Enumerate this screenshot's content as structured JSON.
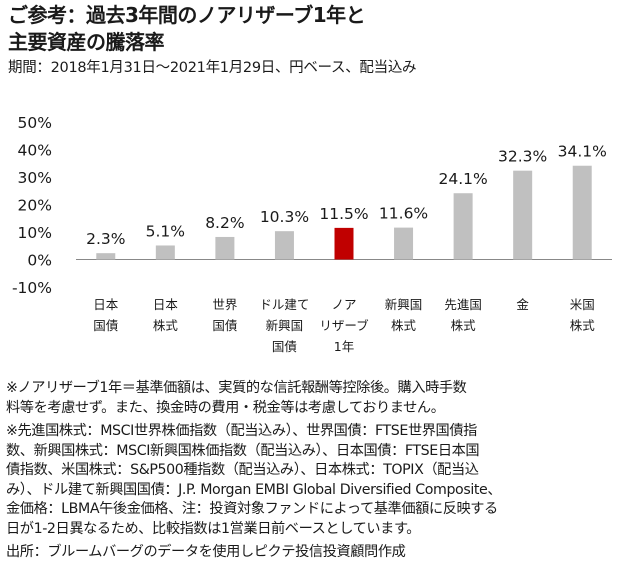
{
  "title_lines": [
    "ご参考：過去3年間のノアリザーブ1年と",
    "主要資産の騰落率"
  ],
  "subtitle": "期間：2018年1月31日～2021年1月29日、円ベース、配当込み",
  "colors": {
    "bar": "#c0c0c0",
    "highlight": "#c00000",
    "text": "#1a1a1a",
    "axis": "#888888"
  },
  "chart_data": {
    "type": "bar",
    "categories": [
      [
        "日本",
        "国債"
      ],
      [
        "日本",
        "株式"
      ],
      [
        "世界",
        "国債"
      ],
      [
        "ドル建て",
        "新興国",
        "国債"
      ],
      [
        "ノア",
        "リザーブ",
        "1年"
      ],
      [
        "新興国",
        "株式"
      ],
      [
        "先進国",
        "株式"
      ],
      [
        "金"
      ],
      [
        "米国",
        "株式"
      ]
    ],
    "values": [
      2.3,
      5.1,
      8.2,
      10.3,
      11.5,
      11.6,
      24.1,
      32.3,
      34.1
    ],
    "data_labels": [
      "2.3%",
      "5.1%",
      "8.2%",
      "10.3%",
      "11.5%",
      "11.6%",
      "24.1%",
      "32.3%",
      "34.1%"
    ],
    "highlight_index": 4,
    "ylim": [
      -10,
      50
    ],
    "yticks": [
      -10,
      0,
      10,
      20,
      30,
      40,
      50
    ],
    "ytick_labels": [
      "-10%",
      "0%",
      "10%",
      "20%",
      "30%",
      "40%",
      "50%"
    ],
    "grid": false,
    "legend": "none"
  },
  "notes": [
    [
      "※ノアリザーブ1年＝基準価額は、実質的な信託報酬等控除後。購入時手数",
      "料等を考慮せず。また、換金時の費用・税金等は考慮しておりません。"
    ],
    [
      "※先進国株式：MSCI世界株価指数（配当込み）、世界国債：FTSE世界国債指",
      "数、新興国株式：MSCI新興国株価指数（配当込み）、日本国債：FTSE日本国",
      "債指数、米国株式：S&P500種指数（配当込み）、日本株式：TOPIX（配当込",
      "み）、ドル建て新興国国債：J.P. Morgan EMBI Global Diversified Composite、",
      "金価格：LBMA午後金価格、注：投資対象ファンドによって基準価額に反映する",
      "日が1-2日異なるため、比較指数は1営業日前ベースとしています。"
    ]
  ],
  "source": "出所：ブルームバーグのデータを使用しピクテ投信投資顧問作成"
}
